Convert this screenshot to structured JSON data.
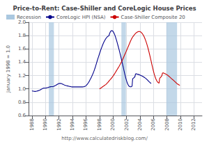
{
  "chart_data": {
    "type": "line",
    "title": "Price-to-Rent: Case-Shiller and CoreLogic House Prices",
    "ylabel": "January 1998 = 1.0",
    "annotations": [
      "http://www.calculatedriskblog.com/"
    ],
    "xlim": [
      1987.5,
      2013.2
    ],
    "xticks": [
      1988,
      1990,
      1992,
      1994,
      1996,
      1998,
      2000,
      2002,
      2004,
      2006,
      2008,
      2010,
      2012
    ],
    "ylim": [
      0.6,
      2.0
    ],
    "yticks": [
      0.6,
      0.8,
      {
        "value": 1.0,
        "label": "1.0"
      },
      1.2,
      1.4,
      1.6,
      1.8,
      {
        "value": 2.0,
        "label": "2.0"
      }
    ],
    "grid": true,
    "legend": "upper left",
    "series": [
      {
        "name": "Recession",
        "type": "span",
        "color": "#aac8e0",
        "ranges": [
          [
            1990.5,
            1991.25
          ],
          [
            2001.25,
            2001.92
          ],
          [
            2007.92,
            2009.5
          ]
        ]
      },
      {
        "name": "CoreLogic HPI (NSA)",
        "type": "line",
        "color": "#00008b",
        "x": [
          1988,
          1988.0833333333333,
          1988.1666666666667,
          1988.25,
          1988.3333333333333,
          1988.4166666666667,
          1988.5,
          1988.5833333333333,
          1988.6666666666667,
          1988.75,
          1988.8333333333333,
          1988.9166666666667,
          1989,
          1989.0833333333333,
          1989.1666666666667,
          1989.25,
          1989.3333333333333,
          1989.4166666666667,
          1989.5,
          1989.5833333333333,
          1989.6666666666667,
          1989.75,
          1989.8333333333333,
          1989.9166666666667,
          1990,
          1990.0833333333333,
          1990.1666666666667,
          1990.25,
          1990.3333333333333,
          1990.4166666666667,
          1990.5,
          1990.5833333333333,
          1990.6666666666667,
          1990.75,
          1990.8333333333333,
          1990.9166666666667,
          1991,
          1991.0833333333333,
          1991.1666666666667,
          1991.25,
          1991.3333333333333,
          1991.4166666666667,
          1991.5,
          1991.5833333333333,
          1991.6666666666667,
          1991.75,
          1991.8333333333333,
          1991.9166666666667,
          1992,
          1992.0833333333333,
          1992.1666666666667,
          1992.25,
          1992.3333333333333,
          1992.4166666666667,
          1992.5,
          1992.5833333333333,
          1992.6666666666667,
          1992.75,
          1992.8333333333333,
          1992.9166666666667,
          1993,
          1993.0833333333333,
          1993.1666666666667,
          1993.25,
          1993.3333333333333,
          1993.4166666666667,
          1993.5,
          1993.5833333333333,
          1993.6666666666667,
          1993.75,
          1993.8333333333333,
          1993.9166666666667,
          1994,
          1994.0833333333333,
          1994.1666666666667,
          1994.25,
          1994.3333333333333,
          1994.4166666666667,
          1994.5,
          1994.5833333333333,
          1994.6666666666667,
          1994.75,
          1994.8333333333333,
          1994.9166666666667,
          1995,
          1995.0833333333333,
          1995.1666666666667,
          1995.25,
          1995.3333333333333,
          1995.4166666666667,
          1995.5,
          1995.5833333333333,
          1995.6666666666667,
          1995.75,
          1995.8333333333333,
          1995.9166666666667,
          1996,
          1996.0833333333333,
          1996.1666666666667,
          1996.25,
          1996.3333333333333,
          1996.4166666666667,
          1996.5,
          1996.5833333333333,
          1996.6666666666667,
          1996.75,
          1996.8333333333333,
          1996.9166666666667,
          1997,
          1997.0833333333333,
          1997.1666666666667,
          1997.25,
          1997.3333333333333,
          1997.4166666666667,
          1997.5,
          1997.5833333333333,
          1997.6666666666667,
          1997.75,
          1997.8333333333333,
          1997.9166666666667,
          1998,
          1998.0833333333333,
          1998.1666666666667,
          1998.25,
          1998.3333333333333,
          1998.4166666666667,
          1998.5,
          1998.5833333333333,
          1998.6666666666667,
          1998.75,
          1998.8333333333333,
          1998.9166666666667,
          1999,
          1999.0833333333333,
          1999.1666666666667,
          1999.25,
          1999.3333333333333,
          1999.4166666666667,
          1999.5,
          1999.5833333333333,
          1999.6666666666667,
          1999.75,
          1999.8333333333333,
          1999.9166666666667,
          2000,
          2000.0833333333333,
          2000.1666666666667,
          2000.25,
          2000.3333333333333,
          2000.4166666666667,
          2000.5,
          2000.5833333333333,
          2000.6666666666667,
          2000.75,
          2000.8333333333333,
          2000.9166666666667,
          2001,
          2001.0833333333333,
          2001.1666666666667,
          2001.25,
          2001.3333333333333,
          2001.4166666666667,
          2001.5,
          2001.5833333333333,
          2001.6666666666667,
          2001.75,
          2001.8333333333333,
          2001.9166666666667,
          2002,
          2002.0833333333333,
          2002.1666666666667,
          2002.25,
          2002.3333333333333,
          2002.4166666666667,
          2002.5,
          2002.5833333333333,
          2002.6666666666667,
          2002.75,
          2002.8333333333333,
          2002.9166666666667,
          2003,
          2003.0833333333333,
          2003.1666666666667,
          2003.25,
          2003.3333333333333,
          2003.4166666666667,
          2003.5,
          2003.5833333333333,
          2003.6666666666667,
          2003.75,
          2003.8333333333333,
          2003.9166666666667,
          2004,
          2004.0833333333333,
          2004.1666666666667,
          2004.25,
          2004.3333333333333,
          2004.4166666666667,
          2004.5,
          2004.5833333333333,
          2004.6666666666667,
          2004.75,
          2004.8333333333333,
          2004.9166666666667,
          2005,
          2005.0833333333333,
          2005.1666666666667,
          2005.25,
          2005.3333333333333,
          2005.4166666666667,
          2005.5,
          2005.5833333333333,
          2005.6666666666667
        ],
        "values": [
          0.97,
          0.968,
          0.966,
          0.965,
          0.963,
          0.962,
          0.962,
          0.963,
          0.965,
          0.967,
          0.97,
          0.972,
          0.975,
          0.978,
          0.982,
          0.986,
          0.991,
          0.996,
          1.001,
          1.006,
          1.01,
          1.012,
          1.013,
          1.013,
          1.013,
          1.014,
          1.016,
          1.018,
          1.02,
          1.022,
          1.025,
          1.028,
          1.03,
          1.032,
          1.033,
          1.033,
          1.033,
          1.034,
          1.036,
          1.04,
          1.044,
          1.048,
          1.052,
          1.057,
          1.062,
          1.067,
          1.072,
          1.077,
          1.08,
          1.082,
          1.083,
          1.082,
          1.08,
          1.077,
          1.073,
          1.069,
          1.065,
          1.061,
          1.057,
          1.054,
          1.051,
          1.049,
          1.047,
          1.045,
          1.043,
          1.041,
          1.039,
          1.037,
          1.035,
          1.033,
          1.031,
          1.03,
          1.03,
          1.03,
          1.03,
          1.03,
          1.03,
          1.03,
          1.03,
          1.03,
          1.03,
          1.03,
          1.03,
          1.03,
          1.03,
          1.03,
          1.03,
          1.03,
          1.03,
          1.03,
          1.03,
          1.031,
          1.032,
          1.034,
          1.038,
          1.042,
          1.048,
          1.056,
          1.065,
          1.076,
          1.088,
          1.102,
          1.116,
          1.132,
          1.148,
          1.165,
          1.182,
          1.2,
          1.22,
          1.24,
          1.262,
          1.285,
          1.31,
          1.336,
          1.364,
          1.392,
          1.42,
          1.447,
          1.474,
          1.5,
          1.526,
          1.551,
          1.576,
          1.6,
          1.623,
          1.645,
          1.666,
          1.686,
          1.704,
          1.721,
          1.736,
          1.75,
          1.762,
          1.773,
          1.782,
          1.789,
          1.795,
          1.799,
          1.831,
          1.85,
          1.865,
          1.872,
          1.875,
          1.872,
          1.864,
          1.852,
          1.836,
          1.816,
          1.793,
          1.767,
          1.74,
          1.711,
          1.681,
          1.65,
          1.618,
          1.585,
          1.552,
          1.518,
          1.483,
          1.447,
          1.411,
          1.374,
          1.337,
          1.3,
          1.263,
          1.226,
          1.191,
          1.158,
          1.128,
          1.102,
          1.08,
          1.062,
          1.048,
          1.038,
          1.033,
          1.031,
          1.032,
          1.036,
          1.041,
          1.148,
          1.16,
          1.165,
          1.175,
          1.18,
          1.22,
          1.228,
          1.225,
          1.222,
          1.22,
          1.218,
          1.215,
          1.212,
          1.208,
          1.204,
          1.2,
          1.196,
          1.192,
          1.188,
          1.183,
          1.178,
          1.172,
          1.166,
          1.16,
          1.153,
          1.145,
          1.137,
          1.128,
          1.119,
          1.11,
          1.102,
          1.094,
          1.088,
          1.083
        ]
      },
      {
        "name": "Case-Shiller Composite 20",
        "type": "line",
        "color": "#cc0000",
        "x": [
          1998,
          1998.0833333333333,
          1998.1666666666667,
          1998.25,
          1998.3333333333333,
          1998.4166666666667,
          1998.5,
          1998.5833333333333,
          1998.6666666666667,
          1998.75,
          1998.8333333333333,
          1998.9166666666667,
          1999,
          1999.0833333333333,
          1999.1666666666667,
          1999.25,
          1999.3333333333333,
          1999.4166666666667,
          1999.5,
          1999.5833333333333,
          1999.6666666666667,
          1999.75,
          1999.8333333333333,
          1999.9166666666667,
          2000,
          2000.0833333333333,
          2000.1666666666667,
          2000.25,
          2000.3333333333333,
          2000.4166666666667,
          2000.5,
          2000.5833333333333,
          2000.6666666666667,
          2000.75,
          2000.8333333333333,
          2000.9166666666667,
          2001,
          2001.0833333333333,
          2001.1666666666667,
          2001.25,
          2001.3333333333333,
          2001.4166666666667,
          2001.5,
          2001.5833333333333,
          2001.6666666666667,
          2001.75,
          2001.8333333333333,
          2001.9166666666667,
          2002,
          2002.0833333333333,
          2002.1666666666667,
          2002.25,
          2002.3333333333333,
          2002.4166666666667,
          2002.5,
          2002.5833333333333,
          2002.6666666666667,
          2002.75,
          2002.8333333333333,
          2002.9166666666667,
          2003,
          2003.0833333333333,
          2003.1666666666667,
          2003.25,
          2003.3333333333333,
          2003.4166666666667,
          2003.5,
          2003.5833333333333,
          2003.6666666666667,
          2003.75,
          2003.8333333333333,
          2003.9166666666667,
          2004,
          2004.0833333333333,
          2004.1666666666667,
          2004.25,
          2004.3333333333333,
          2004.4166666666667,
          2004.5,
          2004.5833333333333,
          2004.6666666666667,
          2004.75,
          2004.8333333333333,
          2004.9166666666667,
          2005,
          2005.0833333333333,
          2005.1666666666667,
          2005.25,
          2005.3333333333333,
          2005.4166666666667,
          2005.5,
          2005.5833333333333,
          2005.6666666666667,
          2005.75,
          2005.8333333333333,
          2005.9166666666667,
          2006,
          2006.0833333333333,
          2006.1666666666667,
          2006.25,
          2006.3333333333333,
          2006.4166666666667,
          2006.5,
          2006.5833333333333,
          2006.6666666666667,
          2006.75,
          2006.8333333333333,
          2006.9166666666667,
          2007,
          2007.0833333333333,
          2007.1666666666667,
          2007.25,
          2007.3333333333333,
          2007.4166666666667,
          2007.5,
          2007.5833333333333,
          2007.6666666666667,
          2007.75,
          2007.8333333333333,
          2007.9166666666667,
          2008,
          2008.0833333333333,
          2008.1666666666667,
          2008.25,
          2008.3333333333333,
          2008.4166666666667,
          2008.5,
          2008.5833333333333,
          2008.6666666666667,
          2008.75,
          2008.8333333333333,
          2008.9166666666667,
          2009,
          2009.0833333333333,
          2009.1666666666667,
          2009.25,
          2009.3333333333333,
          2009.4166666666667,
          2009.5,
          2009.5833333333333,
          2009.6666666666667,
          2009.75,
          2009.8333333333333,
          2009.9166666666667
        ],
        "values": [
          1.0,
          1.005,
          1.01,
          1.016,
          1.022,
          1.028,
          1.034,
          1.04,
          1.046,
          1.052,
          1.058,
          1.064,
          1.072,
          1.08,
          1.089,
          1.098,
          1.108,
          1.118,
          1.128,
          1.138,
          1.148,
          1.158,
          1.168,
          1.178,
          1.19,
          1.202,
          1.215,
          1.228,
          1.242,
          1.256,
          1.27,
          1.284,
          1.298,
          1.312,
          1.326,
          1.34,
          1.355,
          1.37,
          1.386,
          1.403,
          1.42,
          1.438,
          1.457,
          1.476,
          1.495,
          1.514,
          1.533,
          1.552,
          1.572,
          1.592,
          1.612,
          1.632,
          1.652,
          1.672,
          1.692,
          1.712,
          1.73,
          1.748,
          1.764,
          1.778,
          1.79,
          1.801,
          1.812,
          1.822,
          1.831,
          1.839,
          1.846,
          1.852,
          1.857,
          1.86,
          1.862,
          1.862,
          1.86,
          1.856,
          1.85,
          1.842,
          1.832,
          1.82,
          1.806,
          1.79,
          1.772,
          1.752,
          1.73,
          1.706,
          1.68,
          1.652,
          1.622,
          1.59,
          1.557,
          1.522,
          1.487,
          1.45,
          1.413,
          1.375,
          1.338,
          1.302,
          1.268,
          1.236,
          1.207,
          1.18,
          1.157,
          1.137,
          1.12,
          1.107,
          1.097,
          1.09,
          1.087,
          1.156,
          1.168,
          1.175,
          1.188,
          1.196,
          1.235,
          1.242,
          1.238,
          1.234,
          1.23,
          1.226,
          1.222,
          1.218,
          1.212,
          1.206,
          1.2,
          1.193,
          1.186,
          1.178,
          1.17,
          1.163,
          1.155,
          1.148,
          1.141,
          1.134,
          1.126,
          1.118,
          1.11,
          1.102,
          1.094,
          1.086,
          1.079,
          1.073,
          1.067,
          1.062,
          1.058,
          1.054
        ]
      }
    ]
  }
}
